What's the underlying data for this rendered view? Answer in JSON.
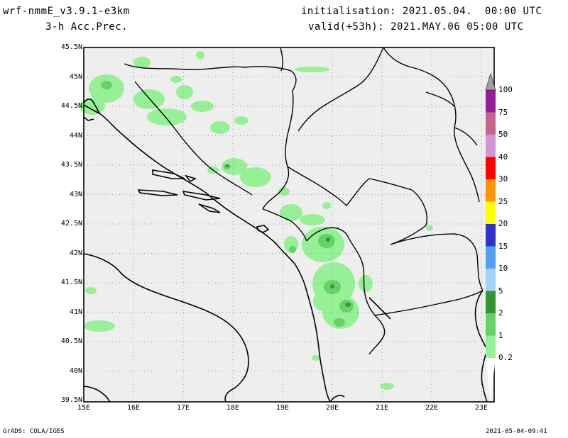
{
  "header": {
    "model": "wrf-nmmE_v3.9.1-e3km",
    "field": "3-h Acc.Prec.",
    "init": "initialisation: 2021.05.04.  00:00 UTC",
    "valid": "valid(+53h): 2021.MAY.06 05:00 UTC"
  },
  "footer": {
    "credit": "GrADS: COLA/IGES",
    "timestamp": "2021-05-04-09:41"
  },
  "axes": {
    "lat_labels": [
      "45.5N",
      "45N",
      "44.5N",
      "44N",
      "43.5N",
      "43N",
      "42.5N",
      "42N",
      "41.5N",
      "41N",
      "40.5N",
      "40N",
      "39.5N"
    ],
    "lon_labels": [
      "15E",
      "16E",
      "17E",
      "18E",
      "19E",
      "20E",
      "21E",
      "22E",
      "23E"
    ]
  },
  "colorbar": {
    "levels": [
      "0.2",
      "1",
      "2",
      "5",
      "10",
      "15",
      "20",
      "25",
      "30",
      "40",
      "50",
      "75",
      "100"
    ],
    "colors": [
      "#96f096",
      "#64d264",
      "#329632",
      "#a0d2fa",
      "#50a0f5",
      "#3232c8",
      "#ffff00",
      "#ff9600",
      "#ff0000",
      "#d296d2",
      "#c8648c",
      "#961e96",
      "#a0a0a0"
    ]
  },
  "map_colors": {
    "background": "#eeeeee",
    "light_precip": "#96f096",
    "medium_precip": "#64d264",
    "heavy_precip": "#329632"
  }
}
